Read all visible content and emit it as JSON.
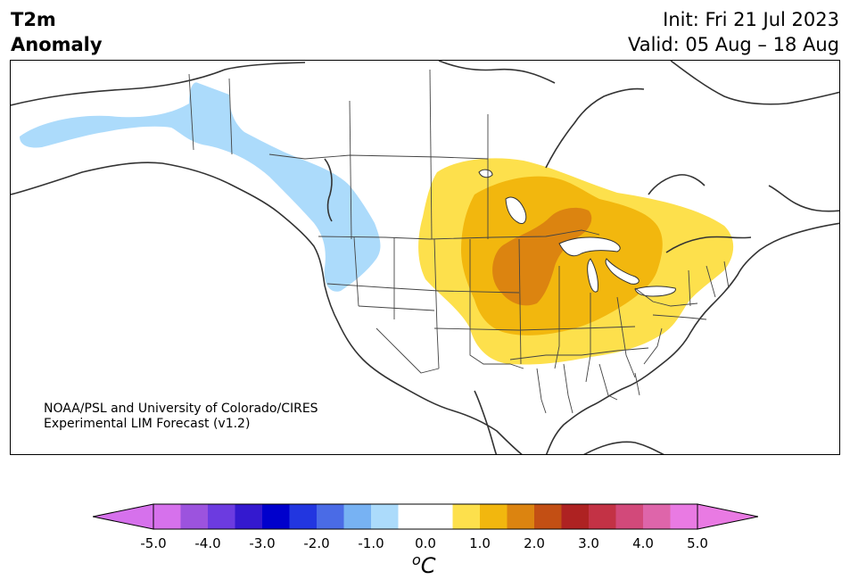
{
  "header": {
    "title_line1": "T2m",
    "title_line2": "Anomaly",
    "init": "Init: Fri 21 Jul 2023",
    "valid": "Valid: 05 Aug – 18 Aug"
  },
  "credit": {
    "line1": "NOAA/PSL and University of Colorado/CIRES",
    "line2": "Experimental LIM Forecast (v1.2)"
  },
  "colorbar": {
    "unit_base": "C",
    "unit_sup": "o",
    "ticks": [
      "-5.0",
      "-4.0",
      "-3.0",
      "-2.0",
      "-1.0",
      "0.0",
      "1.0",
      "2.0",
      "3.0",
      "4.0",
      "5.0"
    ],
    "tick_values": [
      -5,
      -4,
      -3,
      -2,
      -1,
      0,
      1,
      2,
      3,
      4,
      5
    ],
    "range": [
      -5.0,
      5.0
    ],
    "bin_width": 0.5,
    "extend": "both",
    "colors": [
      "#d671ec",
      "#9c53de",
      "#6c3be0",
      "#3419cf",
      "#0000cc",
      "#2236e0",
      "#4a6be6",
      "#77b2f3",
      "#acdbfb",
      "#ffffff",
      "#ffffff",
      "#fde04c",
      "#f2b70e",
      "#dc8410",
      "#c34f14",
      "#ae2222",
      "#c33245",
      "#d2497a",
      "#de65aa",
      "#e97ae3"
    ],
    "under_color": "#d671ec",
    "over_color": "#e97ae3"
  },
  "map_colors": {
    "cool_anomaly": "#acdbfb",
    "warm_1": "#fde04c",
    "warm_2": "#f2b70e",
    "warm_3": "#dc8410",
    "coast": "#333333",
    "border": "#444444"
  }
}
